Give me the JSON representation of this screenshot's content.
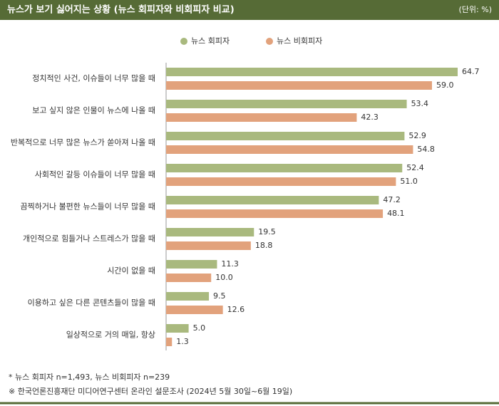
{
  "chart_data": {
    "type": "hbar",
    "title": "뉴스가 보기 싫어지는 상황 (뉴스 회피자와 비회피자 비교)",
    "unit_label": "(단위: %)",
    "categories": [
      "정치적인 사건, 이슈들이 너무 많을 때",
      "보고 싶지 않은 인물이 뉴스에 나올 때",
      "반복적으로 너무 많은 뉴스가 쏟아져 나올 때",
      "사회적인 갈등 이슈들이 너무 많을 때",
      "끔찍하거나 불편한 뉴스들이 너무 많을 때",
      "개인적으로 힘들거나 스트레스가 많을 때",
      "시간이 없을 때",
      "이용하고 싶은 다른 콘텐츠들이 많을 때",
      "일상적으로 거의 매일, 항상"
    ],
    "series": [
      {
        "name": "뉴스 회피자",
        "color": "#a9b97e",
        "values": [
          64.7,
          53.4,
          52.9,
          52.4,
          47.2,
          19.5,
          11.3,
          9.5,
          5.0
        ],
        "value_labels": [
          "64.7",
          "53.4",
          "52.9",
          "52.4",
          "47.2",
          "19.5",
          "11.3",
          "9.5",
          "5.0"
        ]
      },
      {
        "name": "뉴스 비회피자",
        "color": "#e2a27c",
        "values": [
          59.0,
          42.3,
          54.8,
          51.0,
          48.1,
          18.8,
          10.0,
          12.6,
          1.3
        ],
        "value_labels": [
          "59.0",
          "42.3",
          "54.8",
          "51.0",
          "48.1",
          "18.8",
          "10.0",
          "12.6",
          "1.3"
        ]
      }
    ],
    "notes": [
      "* 뉴스 회피자 n=1,493,  뉴스 비회피자 n=239",
      "※ 한국언론진흥재단 미디어연구센터 온라인 설문조사 (2024년 5월 30일~6월 19일)"
    ]
  }
}
